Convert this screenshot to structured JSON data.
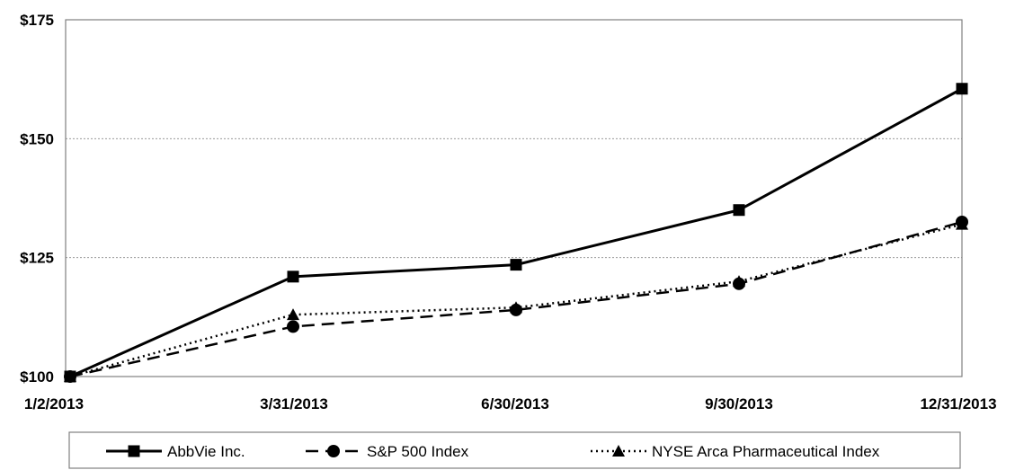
{
  "chart_data": {
    "type": "line",
    "title": "",
    "xlabel": "",
    "ylabel": "",
    "categories": [
      "1/2/2013",
      "3/31/2013",
      "6/30/2013",
      "9/30/2013",
      "12/31/2013"
    ],
    "y_tick_labels": [
      "$100",
      "$125",
      "$150",
      "$175"
    ],
    "y_ticks": [
      100,
      125,
      150,
      175
    ],
    "ylim": [
      100,
      175
    ],
    "grid": "horizontal dotted",
    "legend_position": "bottom",
    "series": [
      {
        "name": "AbbVie Inc.",
        "values": [
          100,
          121,
          123.5,
          135,
          160.5
        ],
        "line_style": "solid",
        "marker": "square",
        "color": "#000000"
      },
      {
        "name": "S&P 500 Index",
        "values": [
          100,
          110.5,
          114,
          119.5,
          132.5
        ],
        "line_style": "dashed",
        "marker": "circle",
        "color": "#000000"
      },
      {
        "name": "NYSE Arca Pharmaceutical Index",
        "values": [
          100,
          113,
          114.5,
          120,
          132
        ],
        "line_style": "dotted",
        "marker": "triangle",
        "color": "#000000"
      }
    ]
  }
}
